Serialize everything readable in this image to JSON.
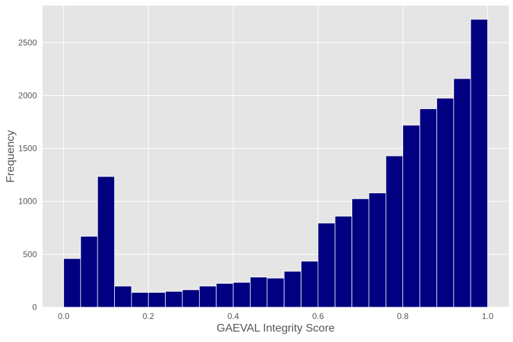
{
  "chart_data": {
    "type": "bar",
    "title": "",
    "xlabel": "GAEVAL Integrity Score",
    "ylabel": "Frequency",
    "xlim": [
      -0.05,
      1.05
    ],
    "ylim": [
      0,
      2850
    ],
    "xticks": [
      0.0,
      0.2,
      0.4,
      0.6,
      0.8,
      1.0
    ],
    "xtick_labels": [
      "0.0",
      "0.2",
      "0.4",
      "0.6",
      "0.8",
      "1.0"
    ],
    "yticks": [
      0,
      500,
      1000,
      1500,
      2000,
      2500
    ],
    "ytick_labels": [
      "0",
      "500",
      "1000",
      "1500",
      "2000",
      "2500"
    ],
    "bin_edges": [
      0.0,
      0.04,
      0.08,
      0.12,
      0.16,
      0.2,
      0.24,
      0.28,
      0.32,
      0.36,
      0.4,
      0.44,
      0.48,
      0.52,
      0.56,
      0.6,
      0.64,
      0.68,
      0.72,
      0.76,
      0.8,
      0.84,
      0.88,
      0.92,
      0.96,
      1.0
    ],
    "values": [
      460,
      670,
      1235,
      200,
      140,
      140,
      150,
      165,
      200,
      225,
      235,
      285,
      275,
      340,
      435,
      795,
      860,
      1025,
      1080,
      1430,
      1720,
      1875,
      1975,
      2160,
      2720
    ],
    "grid": true,
    "colors": {
      "bar": "#000080",
      "bar_edge": "#ffffff",
      "plot_background": "#e5e5e5",
      "grid": "#ffffff"
    }
  }
}
